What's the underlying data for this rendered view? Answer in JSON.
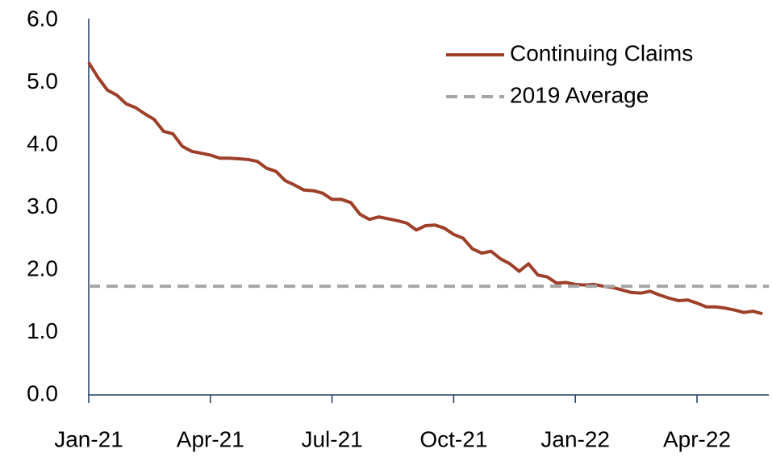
{
  "chart_data": {
    "type": "line",
    "categories": [
      "Jan-21",
      null,
      null,
      null,
      null,
      null,
      null,
      null,
      null,
      null,
      null,
      null,
      null,
      "Apr-21",
      null,
      null,
      null,
      null,
      null,
      null,
      null,
      null,
      null,
      null,
      null,
      null,
      "Jul-21",
      null,
      null,
      null,
      null,
      null,
      null,
      null,
      null,
      null,
      null,
      null,
      null,
      "Oct-21",
      null,
      null,
      null,
      null,
      null,
      null,
      null,
      null,
      null,
      null,
      null,
      null,
      "Jan-22",
      null,
      null,
      null,
      null,
      null,
      null,
      null,
      null,
      null,
      null,
      null,
      null,
      "Apr-22",
      null,
      null,
      null,
      null,
      null,
      null,
      null
    ],
    "series": [
      {
        "name": "Continuing Claims",
        "color": "#9e3f2a",
        "values": [
          5.32,
          5.08,
          4.88,
          4.8,
          4.66,
          4.6,
          4.5,
          4.41,
          4.22,
          4.18,
          3.98,
          3.9,
          3.87,
          3.84,
          3.79,
          3.79,
          3.78,
          3.77,
          3.74,
          3.63,
          3.58,
          3.43,
          3.36,
          3.28,
          3.27,
          3.23,
          3.13,
          3.13,
          3.08,
          2.89,
          2.81,
          2.85,
          2.82,
          2.79,
          2.75,
          2.64,
          2.71,
          2.72,
          2.67,
          2.57,
          2.51,
          2.34,
          2.27,
          2.3,
          2.18,
          2.1,
          1.98,
          2.1,
          1.92,
          1.89,
          1.79,
          1.8,
          1.77,
          1.76,
          1.77,
          1.74,
          1.72,
          1.68,
          1.64,
          1.63,
          1.66,
          1.6,
          1.55,
          1.51,
          1.52,
          1.47,
          1.41,
          1.41,
          1.39,
          1.36,
          1.32,
          1.34,
          1.3
        ]
      },
      {
        "name": "2019 Average",
        "color": "#a6a6a6",
        "value": 1.74,
        "dashed": true
      }
    ],
    "ylim": [
      0,
      6
    ],
    "yticks": [
      {
        "value": 0,
        "label": "0.0"
      },
      {
        "value": 1,
        "label": "1.0"
      },
      {
        "value": 2,
        "label": "2.0"
      },
      {
        "value": 3,
        "label": "3.0"
      },
      {
        "value": 4,
        "label": "4.0"
      },
      {
        "value": 5,
        "label": "5.0"
      },
      {
        "value": 6,
        "label": "6.0"
      }
    ],
    "legend": "upper right"
  }
}
